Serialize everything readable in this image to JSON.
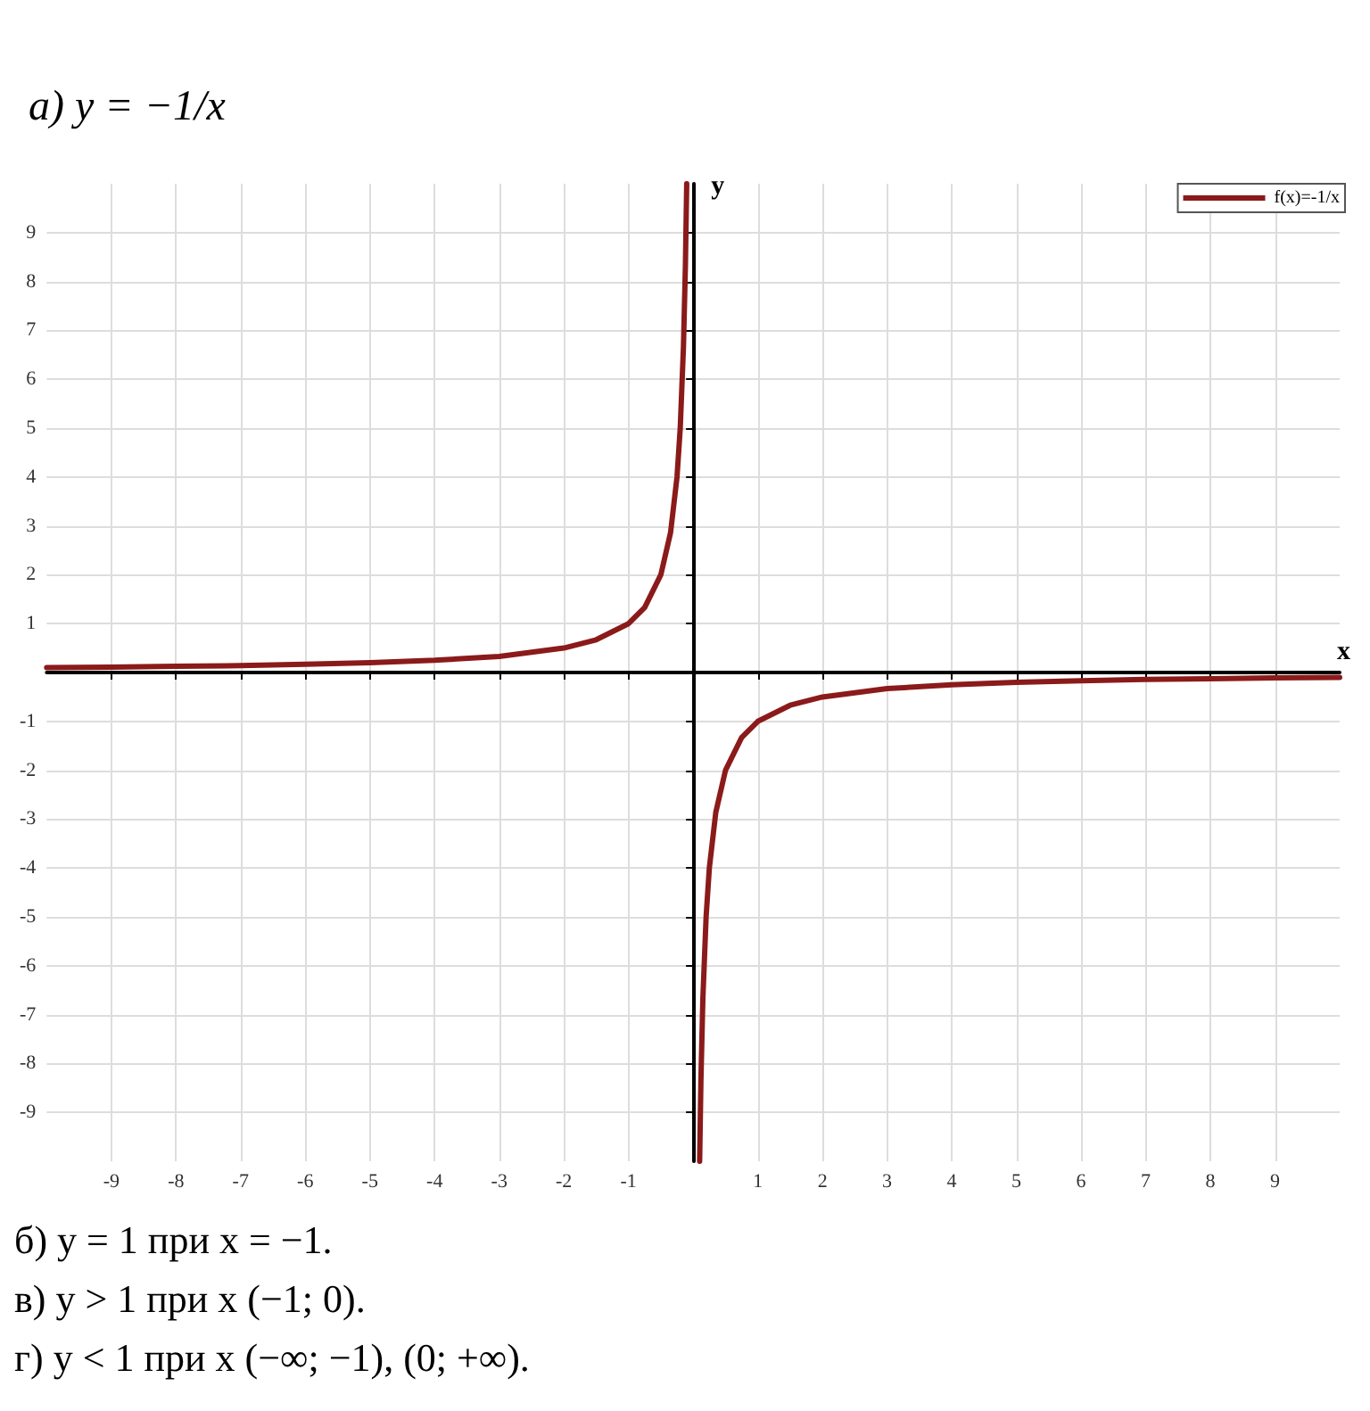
{
  "chart_data": {
    "type": "line",
    "title": "а) y = −1/x",
    "xlabel": "x",
    "ylabel": "y",
    "x": [
      -10,
      -9,
      -8,
      -7,
      -6,
      -5,
      -4,
      -3,
      -2,
      -1.5,
      -1,
      -0.75,
      -0.5,
      -0.35,
      -0.25,
      -0.2,
      -0.15,
      -0.12,
      -0.1,
      0,
      0.1,
      0.12,
      0.15,
      0.2,
      0.25,
      0.35,
      0.5,
      0.75,
      1,
      1.5,
      2,
      3,
      4,
      5,
      6,
      7,
      8,
      9,
      10
    ],
    "series": [
      {
        "name": "f(x)=-1/x",
        "color": "#8b1a1a",
        "values": [
          0.1,
          0.11,
          0.13,
          0.14,
          0.17,
          0.2,
          0.25,
          0.33,
          0.5,
          0.67,
          1,
          1.33,
          2,
          2.86,
          4,
          5,
          6.67,
          8.33,
          10,
          null,
          -10,
          -8.33,
          -6.67,
          -5,
          -4,
          -2.86,
          -2,
          -1.33,
          -1,
          -0.67,
          -0.5,
          -0.33,
          -0.25,
          -0.2,
          -0.17,
          -0.14,
          -0.13,
          -0.11,
          -0.1
        ]
      }
    ],
    "xlim": [
      -10,
      10
    ],
    "ylim": [
      -10,
      10
    ],
    "xticks": [
      -9,
      -8,
      -7,
      -6,
      -5,
      -4,
      -3,
      -2,
      -1,
      1,
      2,
      3,
      4,
      5,
      6,
      7,
      8,
      9
    ],
    "yticks": [
      -9,
      -8,
      -7,
      -6,
      -5,
      -4,
      -3,
      -2,
      -1,
      1,
      2,
      3,
      4,
      5,
      6,
      7,
      8,
      9
    ],
    "grid": true,
    "legend": "top right",
    "marker": "none",
    "line_style": "solid",
    "annotations": [
      "б) y = 1 при x = −1.",
      "в) y > 1 при x (−1; 0).",
      "г) y < 1 при x (−∞; −1), (0; +∞)."
    ]
  }
}
